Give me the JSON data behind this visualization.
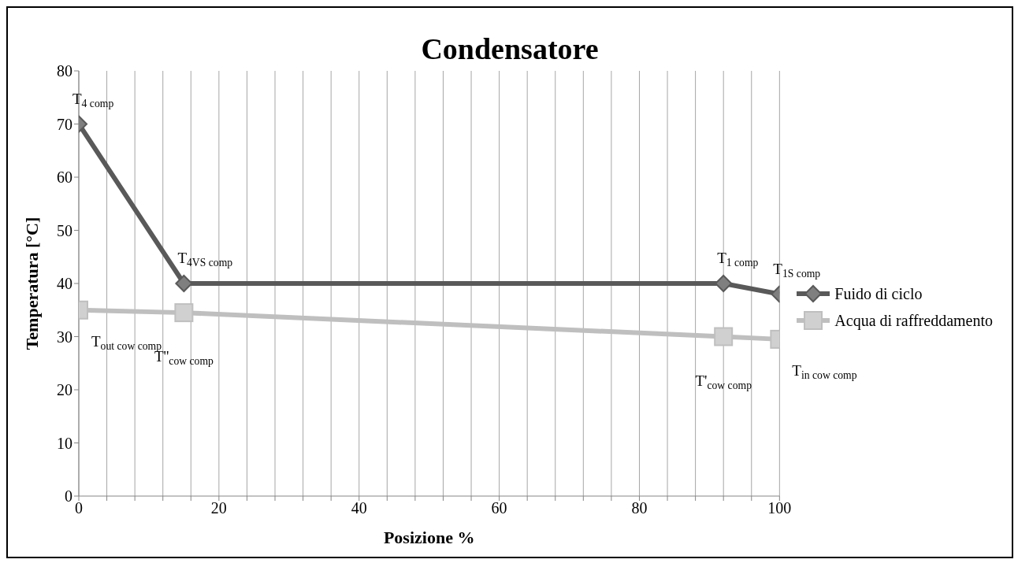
{
  "chart_data": {
    "type": "line",
    "title": "Condensatore",
    "xlabel": "Posizione %",
    "ylabel": "Temperatura [°C]",
    "series": [
      {
        "name": "Fuido di ciclo",
        "color": "#595959",
        "marker": "diamond",
        "x": [
          0,
          15,
          92,
          100
        ],
        "values": [
          70,
          40,
          40,
          38
        ]
      },
      {
        "name": "Acqua di raffreddamento",
        "color": "#bfbfbf",
        "marker": "square",
        "x": [
          0,
          15,
          92,
          100
        ],
        "values": [
          35,
          34.5,
          30,
          29.5
        ]
      }
    ],
    "xlim": [
      0,
      100
    ],
    "ylim": [
      0,
      80
    ],
    "xticks": [
      0,
      {
        "value": 4,
        "label": null
      },
      {
        "value": 8,
        "label": null
      },
      {
        "value": 12,
        "label": null
      },
      {
        "value": 16,
        "label": null
      },
      20,
      {
        "value": 24,
        "label": null
      },
      {
        "value": 28,
        "label": null
      },
      {
        "value": 32,
        "label": null
      },
      {
        "value": 36,
        "label": null
      },
      40,
      {
        "value": 44,
        "label": null
      },
      {
        "value": 48,
        "label": null
      },
      {
        "value": 52,
        "label": null
      },
      {
        "value": 56,
        "label": null
      },
      60,
      {
        "value": 64,
        "label": null
      },
      {
        "value": 68,
        "label": null
      },
      {
        "value": 72,
        "label": null
      },
      {
        "value": 76,
        "label": null
      },
      80,
      {
        "value": 84,
        "label": null
      },
      {
        "value": 88,
        "label": null
      },
      {
        "value": 92,
        "label": null
      },
      {
        "value": 96,
        "label": null
      },
      100
    ],
    "yticks": [
      0,
      10,
      20,
      30,
      40,
      50,
      60,
      70,
      80
    ],
    "grid": "x",
    "legend": "right",
    "line_style": "solid",
    "annotations": [
      {
        "text": "T$_{4 comp}$",
        "x": 0,
        "y": 70
      },
      {
        "text": "T$_{4VS comp}$",
        "x": 15,
        "y": 40
      },
      {
        "text": "T$_{1 comp}$",
        "x": 92,
        "y": 40
      },
      {
        "text": "T$_{1S comp}$",
        "x": 100,
        "y": 38
      },
      {
        "text": "T$_{out cow comp}$",
        "x": 0,
        "y": 35
      },
      {
        "text": "T''$_{cow comp}$",
        "x": 15,
        "y": 34.5
      },
      {
        "text": "T'$_{cow comp}$",
        "x": 92,
        "y": 30
      },
      {
        "text": "T$_{in cow comp}$",
        "x": 100,
        "y": 29.5
      }
    ]
  }
}
